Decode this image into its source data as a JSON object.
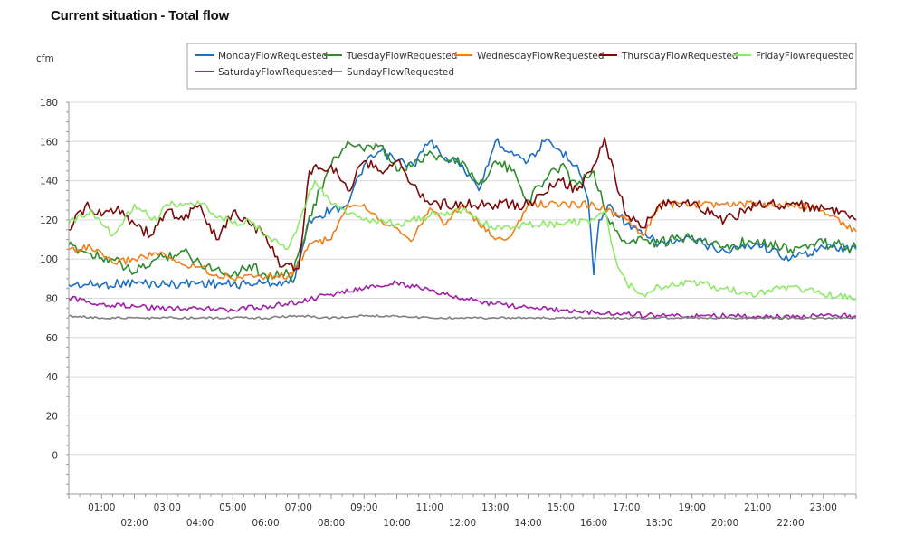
{
  "page": {
    "title": "Current situation - Total flow"
  },
  "colors": {
    "MondayFlowRequested": "#1f6fbf",
    "TuesdayFlowRequested": "#2e8b2e",
    "WednesdayFlowRequested": "#f07f1a",
    "ThursdayFlowRequested": "#7b0a0a",
    "FridayFlowrequested": "#8fe86a",
    "SaturdayFlowRequested": "#a020a8",
    "SundayFlowRequested": "#808080",
    "grid": "#d9d9d9",
    "axis": "#999999"
  },
  "chart_data": {
    "type": "line",
    "title": "Current situation - Total flow",
    "ylabel": "cfm",
    "xlabel": "",
    "ylim": [
      -20,
      180
    ],
    "yticks": [
      0,
      20,
      40,
      60,
      80,
      100,
      120,
      140,
      160,
      180
    ],
    "xlim": [
      "00:00",
      "24:00"
    ],
    "xticks_top": [
      "01:00",
      "03:00",
      "05:00",
      "07:00",
      "09:00",
      "11:00",
      "13:00",
      "15:00",
      "17:00",
      "19:00",
      "21:00",
      "23:00"
    ],
    "xticks_bottom": [
      "02:00",
      "04:00",
      "06:00",
      "08:00",
      "10:00",
      "12:00",
      "14:00",
      "16:00",
      "18:00",
      "20:00",
      "22:00"
    ],
    "grid": true,
    "legend_position": "top",
    "series": [
      {
        "name": "MondayFlowRequested",
        "x": [
          "00:00",
          "01:00",
          "02:00",
          "03:00",
          "04:00",
          "05:00",
          "06:00",
          "06:50",
          "07:20",
          "08:00",
          "08:30",
          "09:00",
          "09:30",
          "10:00",
          "10:30",
          "11:00",
          "11:30",
          "12:00",
          "12:30",
          "13:00",
          "13:30",
          "14:00",
          "14:30",
          "15:00",
          "15:30",
          "15:50",
          "16:00",
          "16:10",
          "16:30",
          "17:00",
          "17:30",
          "18:00",
          "19:00",
          "20:00",
          "21:00",
          "22:00",
          "23:00",
          "24:00"
        ],
        "values": [
          87,
          87,
          88,
          87,
          88,
          87,
          88,
          88,
          120,
          125,
          128,
          148,
          155,
          150,
          148,
          160,
          152,
          148,
          135,
          160,
          155,
          150,
          160,
          155,
          148,
          130,
          92,
          120,
          128,
          118,
          112,
          108,
          110,
          104,
          108,
          100,
          106,
          105
        ]
      },
      {
        "name": "TuesdayFlowRequested",
        "x": [
          "00:00",
          "00:40",
          "01:20",
          "02:00",
          "02:40",
          "03:30",
          "04:00",
          "04:30",
          "05:00",
          "05:30",
          "06:00",
          "06:50",
          "07:20",
          "08:00",
          "08:30",
          "09:00",
          "09:30",
          "10:00",
          "10:30",
          "11:00",
          "11:30",
          "12:00",
          "12:30",
          "13:00",
          "13:30",
          "14:00",
          "14:30",
          "15:00",
          "15:30",
          "16:00",
          "16:30",
          "17:00",
          "17:30",
          "18:00",
          "19:00",
          "20:00",
          "21:00",
          "22:00",
          "23:00",
          "24:00"
        ],
        "values": [
          107,
          103,
          100,
          93,
          100,
          104,
          98,
          95,
          92,
          97,
          92,
          92,
          122,
          148,
          160,
          155,
          158,
          145,
          148,
          155,
          150,
          150,
          138,
          150,
          145,
          130,
          140,
          148,
          138,
          145,
          118,
          108,
          110,
          108,
          112,
          106,
          110,
          105,
          108,
          106
        ]
      },
      {
        "name": "WednesdayFlowRequested",
        "x": [
          "00:00",
          "00:40",
          "01:20",
          "02:00",
          "02:40",
          "03:30",
          "04:00",
          "04:30",
          "05:00",
          "05:30",
          "06:00",
          "06:50",
          "07:20",
          "08:00",
          "08:30",
          "09:00",
          "09:30",
          "10:00",
          "10:30",
          "11:00",
          "11:30",
          "12:00",
          "12:30",
          "13:00",
          "13:30",
          "14:00",
          "15:00",
          "16:00",
          "17:00",
          "17:30",
          "18:00",
          "19:00",
          "20:00",
          "21:00",
          "22:00",
          "23:00",
          "24:00"
        ],
        "values": [
          105,
          106,
          98,
          100,
          103,
          97,
          96,
          92,
          90,
          92,
          91,
          92,
          108,
          110,
          128,
          128,
          120,
          116,
          110,
          126,
          118,
          128,
          118,
          110,
          112,
          128,
          128,
          128,
          120,
          112,
          128,
          128,
          128,
          128,
          128,
          125,
          114
        ]
      },
      {
        "name": "ThursdayFlowRequested",
        "x": [
          "00:00",
          "00:30",
          "01:00",
          "01:30",
          "02:00",
          "02:30",
          "03:00",
          "03:30",
          "04:00",
          "04:30",
          "05:00",
          "05:30",
          "06:00",
          "06:30",
          "07:00",
          "07:20",
          "08:00",
          "08:30",
          "09:00",
          "09:30",
          "10:00",
          "10:30",
          "11:00",
          "12:00",
          "13:00",
          "14:00",
          "15:00",
          "15:30",
          "16:00",
          "16:20",
          "16:40",
          "17:00",
          "17:30",
          "18:00",
          "19:00",
          "20:00",
          "21:00",
          "22:00",
          "23:00",
          "24:00"
        ],
        "values": [
          115,
          127,
          122,
          127,
          118,
          112,
          125,
          120,
          128,
          110,
          124,
          118,
          112,
          96,
          95,
          145,
          148,
          135,
          150,
          145,
          150,
          138,
          128,
          128,
          128,
          128,
          140,
          135,
          148,
          162,
          140,
          122,
          116,
          128,
          128,
          120,
          128,
          128,
          126,
          120
        ]
      },
      {
        "name": "FridayFlowrequested",
        "x": [
          "00:00",
          "00:40",
          "01:20",
          "02:00",
          "02:40",
          "03:00",
          "04:00",
          "05:00",
          "05:30",
          "06:00",
          "06:40",
          "07:00",
          "07:30",
          "08:00",
          "09:00",
          "10:00",
          "11:00",
          "12:00",
          "13:00",
          "14:00",
          "15:00",
          "16:00",
          "16:20",
          "16:40",
          "17:00",
          "17:30",
          "18:00",
          "19:00",
          "20:00",
          "21:00",
          "22:00",
          "23:00",
          "24:00"
        ],
        "values": [
          118,
          125,
          112,
          128,
          120,
          128,
          128,
          118,
          120,
          112,
          105,
          118,
          140,
          128,
          120,
          118,
          122,
          125,
          115,
          118,
          118,
          120,
          125,
          100,
          88,
          82,
          86,
          88,
          85,
          82,
          86,
          82,
          80
        ]
      },
      {
        "name": "SaturdayFlowRequested",
        "x": [
          "00:00",
          "01:00",
          "02:00",
          "03:00",
          "04:00",
          "05:00",
          "06:00",
          "07:00",
          "08:00",
          "09:00",
          "10:00",
          "11:00",
          "12:00",
          "13:00",
          "14:00",
          "15:00",
          "16:00",
          "17:00",
          "18:00",
          "19:00",
          "20:00",
          "21:00",
          "22:00",
          "23:00",
          "24:00"
        ],
        "values": [
          80,
          77,
          76,
          75,
          75,
          74,
          76,
          78,
          82,
          85,
          88,
          84,
          80,
          77,
          75,
          74,
          73,
          72,
          71,
          71,
          71,
          71,
          70,
          71,
          71
        ]
      },
      {
        "name": "SundayFlowRequested",
        "x": [
          "00:00",
          "01:00",
          "02:00",
          "03:00",
          "04:00",
          "05:00",
          "06:00",
          "07:00",
          "08:00",
          "09:00",
          "10:00",
          "11:00",
          "12:00",
          "13:00",
          "14:00",
          "15:00",
          "16:00",
          "17:00",
          "18:00",
          "19:00",
          "20:00",
          "21:00",
          "22:00",
          "23:00",
          "24:00"
        ],
        "values": [
          71,
          70,
          70,
          70,
          70,
          70,
          70,
          71,
          70,
          71,
          71,
          70,
          70,
          70,
          70,
          70,
          70,
          70,
          70,
          70,
          70,
          70,
          70,
          70,
          70
        ]
      }
    ]
  }
}
